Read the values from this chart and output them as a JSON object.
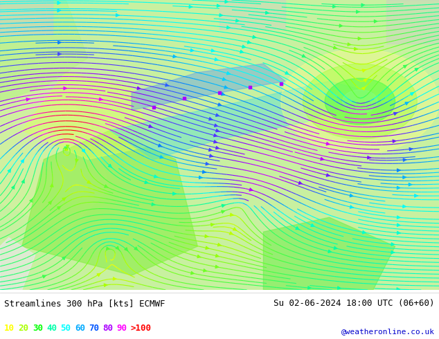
{
  "title_left": "Streamlines 300 hPa [kts] ECMWF",
  "title_right": "Su 02-06-2024 18:00 UTC (06+60)",
  "credit": "@weatheronline.co.uk",
  "legend_values": [
    "10",
    "20",
    "30",
    "40",
    "50",
    "60",
    "70",
    "80",
    "90",
    ">100"
  ],
  "legend_colors": [
    "#ffff00",
    "#aaff00",
    "#00ff00",
    "#00ffaa",
    "#00ffff",
    "#00aaff",
    "#0055ff",
    "#aa00ff",
    "#ff00ff",
    "#ff0000"
  ],
  "bg_color": "#ffffff",
  "fig_width": 6.34,
  "fig_height": 4.9,
  "dpi": 100
}
